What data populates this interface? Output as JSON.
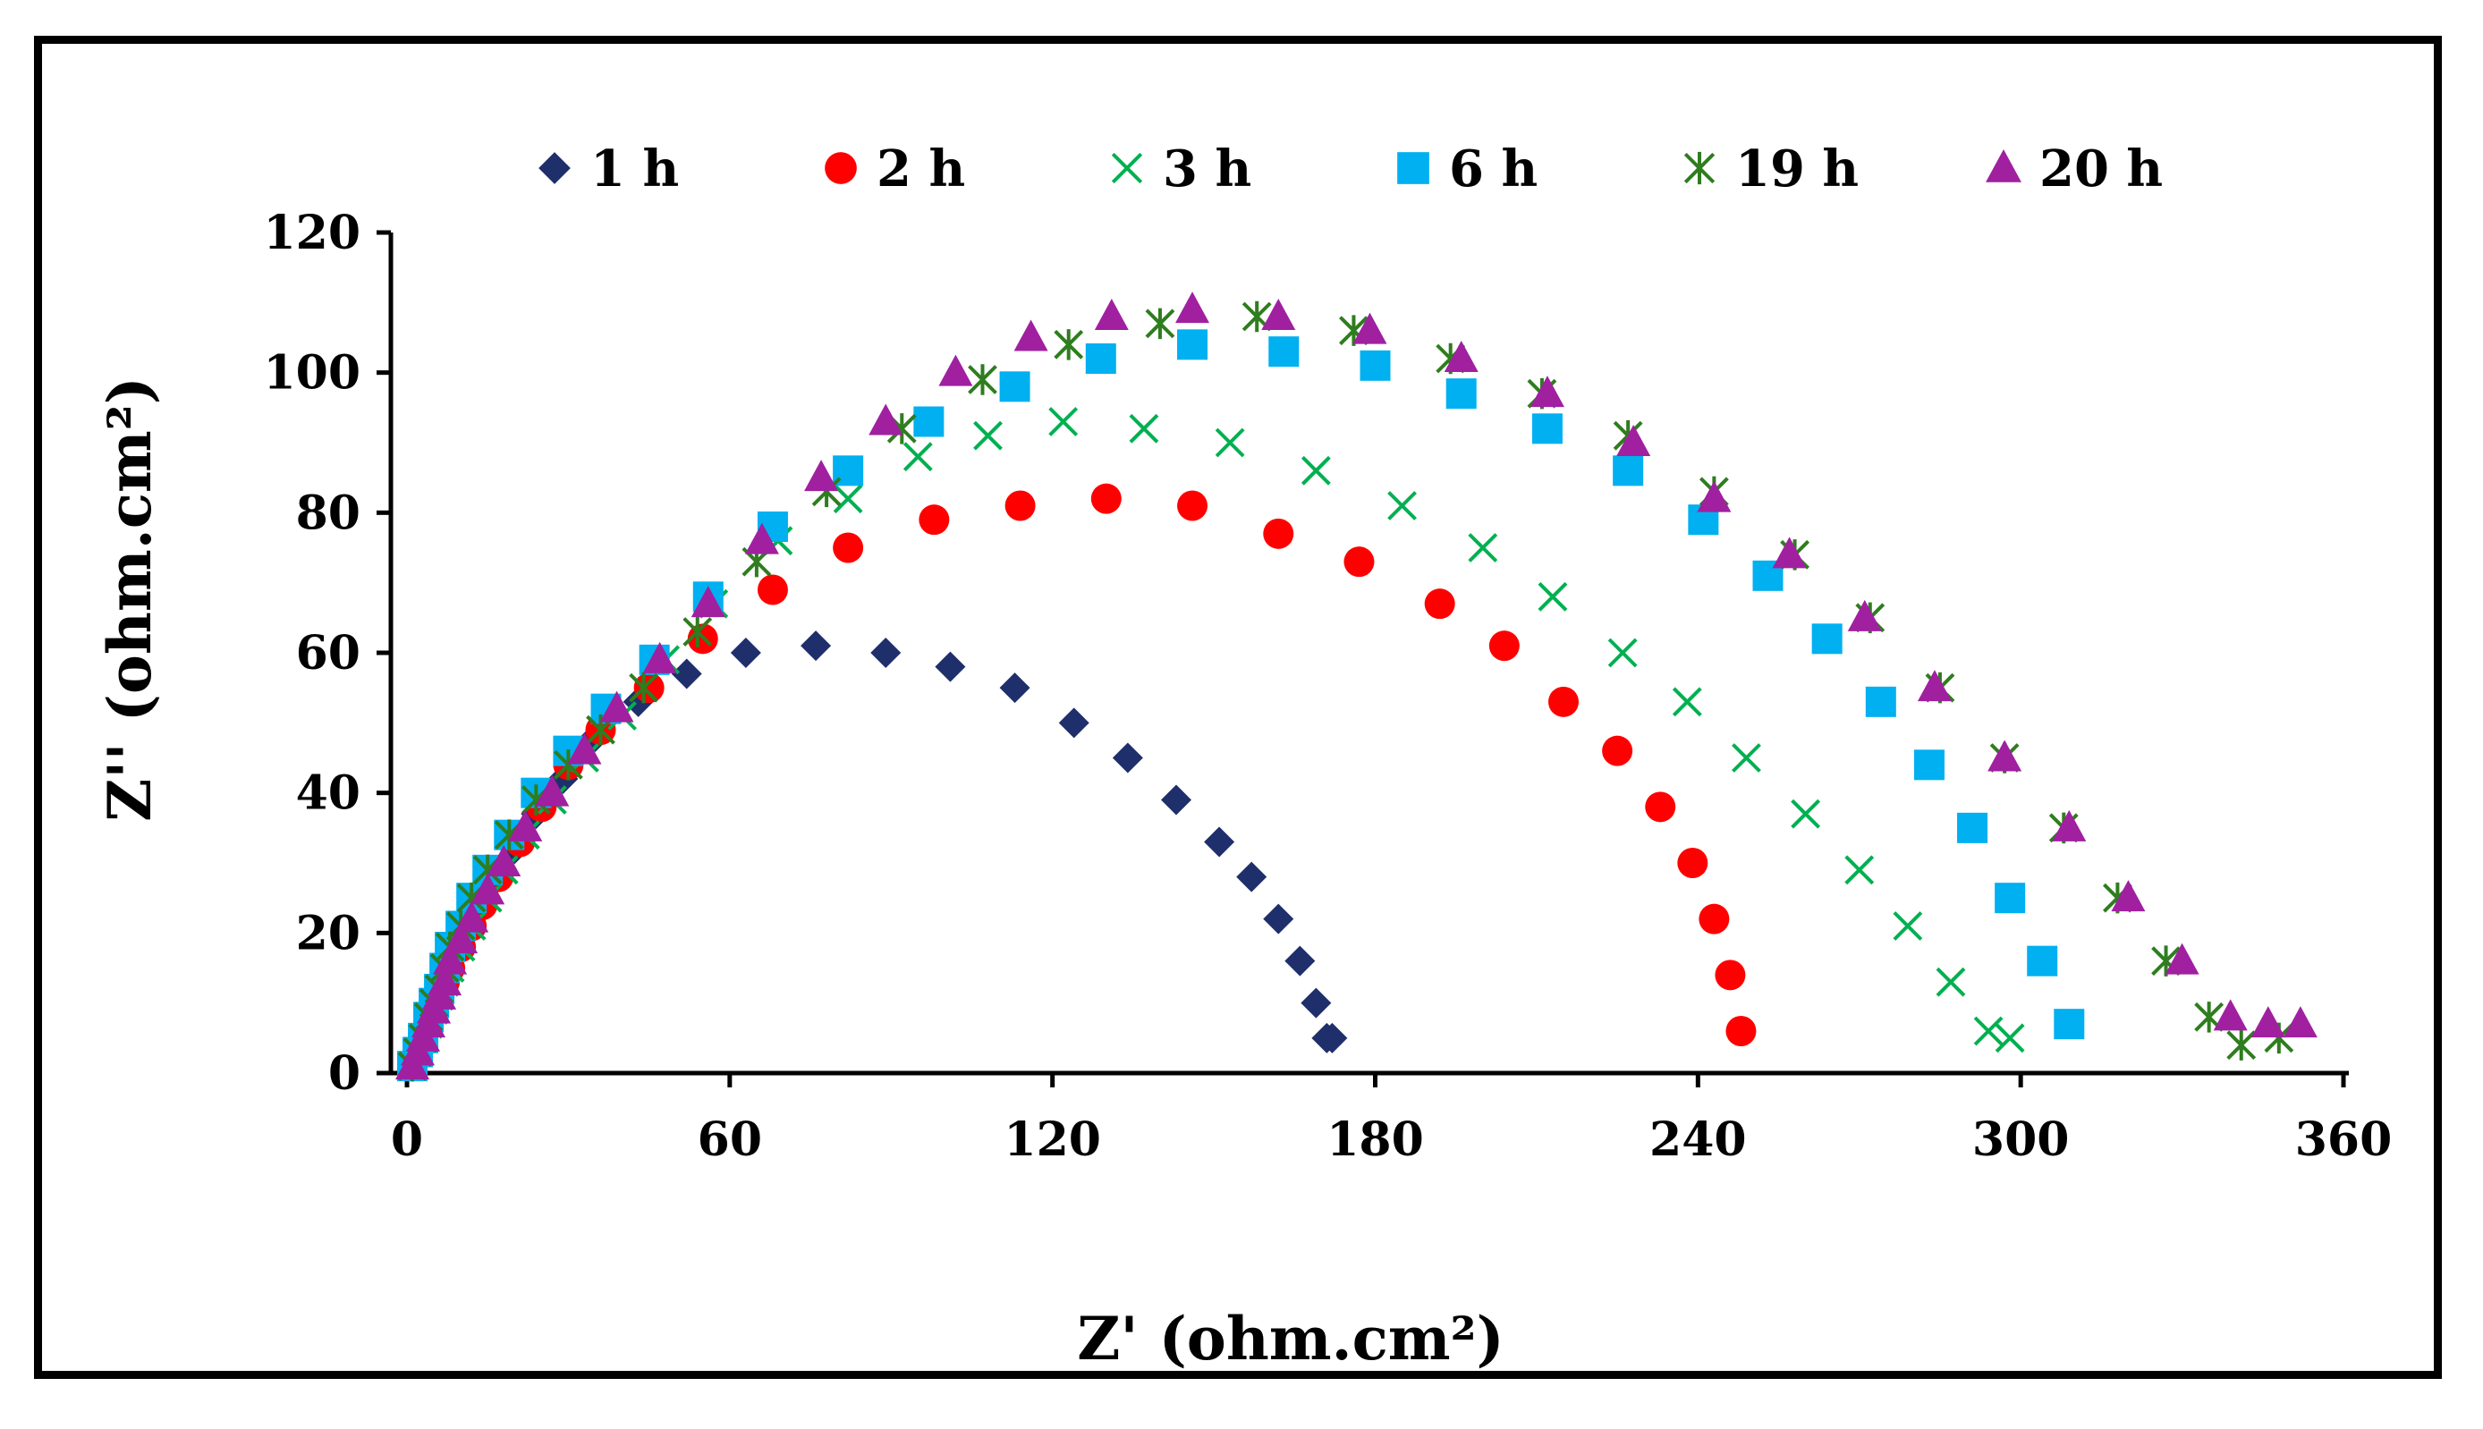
{
  "chart_data": {
    "type": "scatter",
    "title": "",
    "xlabel": "Z' (ohm.cm²)",
    "ylabel": "Z'' (ohm.cm²)",
    "xlim": [
      0,
      360
    ],
    "ylim": [
      0,
      120
    ],
    "xticks": [
      0,
      60,
      120,
      180,
      240,
      300,
      360
    ],
    "yticks": [
      0,
      20,
      40,
      60,
      80,
      100,
      120
    ],
    "grid": false,
    "legend_position": "top",
    "series": [
      {
        "name": "1 h",
        "marker": "diamond",
        "color": "#1f2f6b",
        "x": [
          1,
          2,
          3,
          4,
          5,
          6,
          7,
          8,
          10,
          12,
          14,
          17,
          20,
          24,
          29,
          35,
          43,
          52,
          63,
          76,
          89,
          101,
          113,
          124,
          134,
          143,
          151,
          157,
          162,
          166,
          169,
          171,
          172
        ],
        "y": [
          1,
          3,
          5,
          7,
          9,
          11,
          13,
          15,
          18,
          21,
          24,
          28,
          32,
          37,
          42,
          48,
          53,
          57,
          60,
          61,
          60,
          58,
          55,
          50,
          45,
          39,
          33,
          28,
          22,
          16,
          10,
          5,
          5
        ]
      },
      {
        "name": "2 h",
        "marker": "circle",
        "color": "#ff0000",
        "x": [
          1,
          2,
          3,
          4,
          5,
          6,
          7,
          8,
          10,
          12,
          14,
          17,
          21,
          25,
          30,
          36,
          45,
          55,
          68,
          82,
          98,
          114,
          130,
          146,
          162,
          177,
          192,
          204,
          215,
          225,
          233,
          239,
          243,
          246,
          248
        ],
        "y": [
          1,
          3,
          5,
          7,
          9,
          11,
          13,
          15,
          18,
          21,
          24,
          28,
          33,
          38,
          44,
          49,
          55,
          62,
          69,
          75,
          79,
          81,
          82,
          81,
          77,
          73,
          67,
          61,
          53,
          46,
          38,
          30,
          22,
          14,
          6
        ]
      },
      {
        "name": "3 h",
        "marker": "x",
        "color": "#00b050",
        "x": [
          1,
          2,
          3,
          4,
          5,
          6,
          7,
          8,
          10,
          12,
          15,
          18,
          22,
          27,
          33,
          40,
          48,
          57,
          69,
          82,
          95,
          108,
          122,
          137,
          153,
          169,
          185,
          200,
          213,
          226,
          238,
          249,
          260,
          270,
          279,
          287,
          294,
          298
        ],
        "y": [
          1,
          3,
          5,
          7,
          9,
          11,
          13,
          15,
          18,
          21,
          25,
          29,
          34,
          39,
          45,
          51,
          59,
          67,
          76,
          82,
          88,
          91,
          93,
          92,
          90,
          86,
          81,
          75,
          68,
          60,
          53,
          45,
          37,
          29,
          21,
          13,
          6,
          5
        ]
      },
      {
        "name": "6 h",
        "marker": "square",
        "color": "#00b0f0",
        "x": [
          1,
          2,
          3,
          4,
          5,
          6,
          7,
          8,
          10,
          12,
          15,
          19,
          24,
          30,
          37,
          46,
          56,
          68,
          82,
          97,
          113,
          129,
          146,
          163,
          180,
          196,
          212,
          227,
          241,
          253,
          264,
          274,
          283,
          291,
          298,
          304,
          309
        ],
        "y": [
          1,
          3,
          5,
          8,
          10,
          12,
          15,
          18,
          21,
          25,
          29,
          34,
          40,
          46,
          52,
          59,
          68,
          78,
          86,
          93,
          98,
          102,
          104,
          103,
          101,
          97,
          92,
          86,
          79,
          71,
          62,
          53,
          44,
          35,
          25,
          16,
          7
        ]
      },
      {
        "name": "19 h",
        "marker": "asterisk",
        "color": "#2e7d1e",
        "x": [
          1,
          2,
          3,
          4,
          5,
          6,
          7,
          8,
          10,
          12,
          15,
          19,
          24,
          30,
          36,
          44,
          54,
          65,
          78,
          92,
          107,
          123,
          140,
          158,
          176,
          194,
          211,
          227,
          243,
          258,
          272,
          285,
          297,
          308,
          318,
          327,
          335,
          341,
          348
        ],
        "y": [
          1,
          3,
          5,
          8,
          10,
          12,
          15,
          18,
          21,
          25,
          29,
          34,
          39,
          44,
          49,
          55,
          63,
          73,
          83,
          92,
          99,
          104,
          107,
          108,
          106,
          102,
          97,
          91,
          83,
          74,
          65,
          55,
          45,
          35,
          25,
          16,
          8,
          4,
          5
        ]
      },
      {
        "name": "20 h",
        "marker": "triangle",
        "color": "#a020a0",
        "x": [
          1,
          2,
          3,
          4,
          5,
          6,
          7,
          8,
          10,
          12,
          15,
          18,
          22,
          27,
          33,
          39,
          47,
          56,
          66,
          77,
          89,
          102,
          116,
          131,
          146,
          162,
          179,
          196,
          212,
          228,
          243,
          257,
          271,
          284,
          297,
          309,
          320,
          330,
          339,
          346,
          352
        ],
        "y": [
          1,
          3,
          5,
          7,
          9,
          11,
          13,
          16,
          19,
          22,
          26,
          30,
          35,
          40,
          46,
          52,
          59,
          67,
          76,
          85,
          93,
          100,
          105,
          108,
          109,
          108,
          106,
          102,
          97,
          90,
          82,
          74,
          65,
          55,
          45,
          35,
          25,
          16,
          8,
          7,
          7
        ]
      }
    ]
  }
}
